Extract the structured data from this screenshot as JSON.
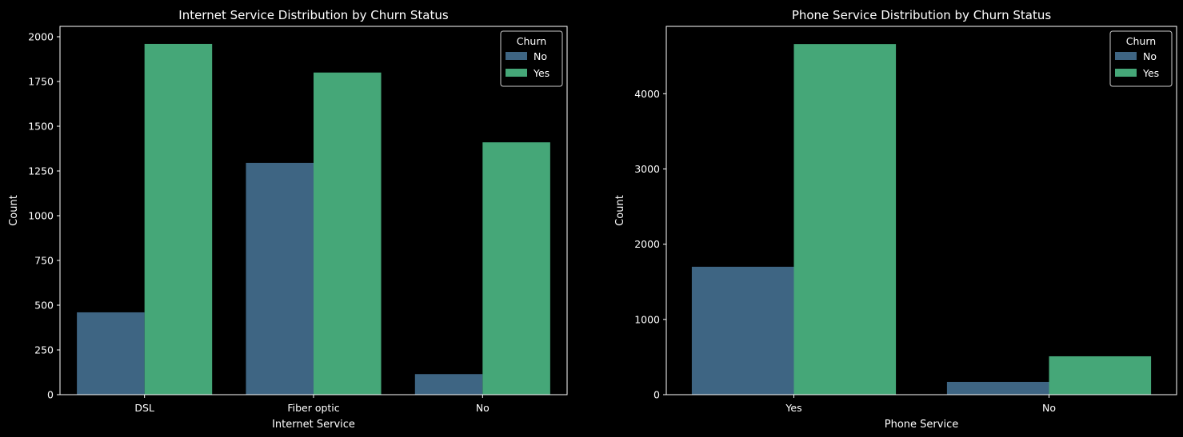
{
  "colors": {
    "background": "#000000",
    "axis": "#ffffff",
    "series_no": "#3e6583",
    "series_yes": "#45a778",
    "legend_bg": "#000000",
    "legend_border": "#cccccc"
  },
  "chart_data": [
    {
      "type": "bar",
      "title": "Internet Service Distribution by Churn Status",
      "xlabel": "Internet Service",
      "ylabel": "Count",
      "categories": [
        "DSL",
        "Fiber optic",
        "No"
      ],
      "series": [
        {
          "name": "No",
          "values": [
            460,
            1295,
            115
          ]
        },
        {
          "name": "Yes",
          "values": [
            1960,
            1800,
            1410
          ]
        }
      ],
      "ylim": [
        0,
        2058
      ],
      "yticks": [
        0,
        250,
        500,
        750,
        1000,
        1250,
        1500,
        1750,
        2000
      ],
      "legend": {
        "title": "Churn",
        "placement": "top-right"
      },
      "grid": false
    },
    {
      "type": "bar",
      "title": "Phone Service Distribution by Churn Status",
      "xlabel": "Phone Service",
      "ylabel": "Count",
      "categories": [
        "Yes",
        "No"
      ],
      "series": [
        {
          "name": "No",
          "values": [
            1700,
            170
          ]
        },
        {
          "name": "Yes",
          "values": [
            4660,
            510
          ]
        }
      ],
      "ylim": [
        0,
        4895
      ],
      "yticks": [
        0,
        1000,
        2000,
        3000,
        4000
      ],
      "legend": {
        "title": "Churn",
        "placement": "top-right"
      },
      "grid": false
    }
  ]
}
